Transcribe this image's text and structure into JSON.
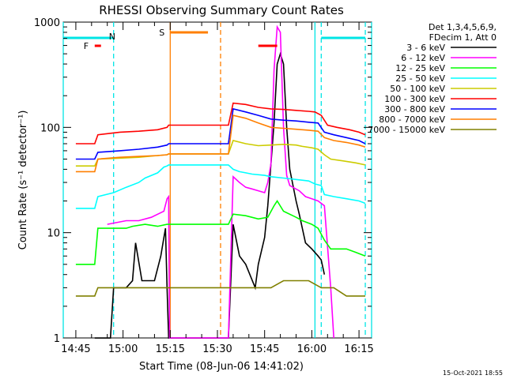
{
  "chart_data": {
    "type": "line",
    "title": "RHESSI Observing Summary Count Rates",
    "xlabel": "Start Time (08-Jun-06 14:41:02)",
    "ylabel": "Count Rate (s⁻¹ detector⁻¹)",
    "y_scale": "log",
    "ylim": [
      1,
      1000
    ],
    "xlim_minutes": [
      -4,
      94
    ],
    "grid": false,
    "legend_position": "right",
    "footer": "15-Oct-2021 18:55",
    "legend_header": [
      "Det 1,3,4,5,6,9,",
      "FDecim 1, Att 0"
    ],
    "x_tick_labels": [
      {
        "t": 0,
        "label": "14:45"
      },
      {
        "t": 15,
        "label": "15:00"
      },
      {
        "t": 30,
        "label": "15:15"
      },
      {
        "t": 45,
        "label": "15:30"
      },
      {
        "t": 60,
        "label": "15:45"
      },
      {
        "t": 75,
        "label": "16:00"
      },
      {
        "t": 90,
        "label": "16:15"
      }
    ],
    "y_tick_labels": [
      {
        "v": 1,
        "label": "1"
      },
      {
        "v": 10,
        "label": "10"
      },
      {
        "v": 100,
        "label": "100"
      },
      {
        "v": 1000,
        "label": "1000"
      }
    ],
    "series": [
      {
        "name": "3 - 6 keV",
        "color": "#000000",
        "points": [
          [
            6,
            0
          ],
          [
            11,
            0
          ],
          [
            12,
            3
          ],
          [
            16,
            3
          ],
          [
            18,
            3.5
          ],
          [
            19,
            8
          ],
          [
            21,
            3.5
          ],
          [
            25,
            3.5
          ],
          [
            27,
            6
          ],
          [
            28,
            9
          ],
          [
            28.5,
            11
          ],
          [
            29,
            3
          ],
          [
            29.5,
            0.5
          ],
          [
            48.5,
            0.5
          ],
          [
            50,
            12
          ],
          [
            52,
            6
          ],
          [
            54,
            5
          ],
          [
            57,
            3
          ],
          [
            58,
            5
          ],
          [
            60,
            9
          ],
          [
            61,
            18
          ],
          [
            63,
            110
          ],
          [
            64,
            400
          ],
          [
            65,
            500
          ],
          [
            66,
            400
          ],
          [
            67,
            100
          ],
          [
            68,
            40
          ],
          [
            70,
            20
          ],
          [
            71,
            15
          ],
          [
            73,
            8
          ],
          [
            75,
            7
          ],
          [
            77,
            6
          ],
          [
            78,
            5.5
          ],
          [
            79,
            4
          ]
        ]
      },
      {
        "name": "6 - 12 keV",
        "color": "#ff00ff",
        "points": [
          [
            10,
            12
          ],
          [
            16,
            13
          ],
          [
            20,
            13
          ],
          [
            24,
            14
          ],
          [
            28,
            16
          ],
          [
            29,
            21
          ],
          [
            29.5,
            22
          ],
          [
            29.8,
            1
          ],
          [
            48.5,
            1
          ],
          [
            50,
            34
          ],
          [
            52,
            30
          ],
          [
            54,
            27
          ],
          [
            56,
            26
          ],
          [
            58,
            25
          ],
          [
            60,
            24
          ],
          [
            61,
            30
          ],
          [
            62,
            45
          ],
          [
            63,
            350
          ],
          [
            64,
            900
          ],
          [
            65,
            800
          ],
          [
            66,
            100
          ],
          [
            67,
            35
          ],
          [
            68,
            28
          ],
          [
            71,
            25
          ],
          [
            73,
            22
          ],
          [
            75,
            21
          ],
          [
            77,
            20
          ],
          [
            79,
            18
          ],
          [
            81,
            3
          ],
          [
            82,
            0.5
          ]
        ]
      },
      {
        "name": "12 - 25 keV",
        "color": "#00ff00",
        "points": [
          [
            0,
            5
          ],
          [
            6,
            5
          ],
          [
            7,
            11
          ],
          [
            16,
            11
          ],
          [
            18,
            11.5
          ],
          [
            22,
            12
          ],
          [
            26,
            11.5
          ],
          [
            29,
            12
          ],
          [
            29.5,
            12
          ],
          [
            48.5,
            12
          ],
          [
            50,
            15
          ],
          [
            54,
            14.5
          ],
          [
            58,
            13.5
          ],
          [
            61,
            14
          ],
          [
            63,
            18
          ],
          [
            64,
            20
          ],
          [
            66,
            16
          ],
          [
            70,
            14
          ],
          [
            72,
            13
          ],
          [
            75,
            12
          ],
          [
            77,
            11
          ],
          [
            79,
            8.5
          ],
          [
            81,
            7
          ],
          [
            86,
            7
          ],
          [
            89,
            6.5
          ],
          [
            92,
            6
          ]
        ]
      },
      {
        "name": "25 - 50 keV",
        "color": "#00ffff",
        "points": [
          [
            0,
            17
          ],
          [
            6,
            17
          ],
          [
            7,
            22
          ],
          [
            12,
            24
          ],
          [
            16,
            27
          ],
          [
            20,
            30
          ],
          [
            22,
            33
          ],
          [
            26,
            37
          ],
          [
            28,
            42
          ],
          [
            29,
            43
          ],
          [
            29.5,
            44
          ],
          [
            48.5,
            44
          ],
          [
            50,
            40
          ],
          [
            52,
            38
          ],
          [
            54,
            37
          ],
          [
            56,
            36
          ],
          [
            60,
            35
          ],
          [
            62,
            34
          ],
          [
            66,
            33
          ],
          [
            70,
            32
          ],
          [
            74,
            31
          ],
          [
            76,
            29
          ],
          [
            78,
            28
          ],
          [
            79,
            23
          ],
          [
            82,
            22
          ],
          [
            86,
            21
          ],
          [
            90,
            20
          ],
          [
            92,
            19
          ]
        ]
      },
      {
        "name": "50 - 100 keV",
        "color": "#cccc00",
        "points": [
          [
            0,
            43
          ],
          [
            6,
            43
          ],
          [
            7,
            50
          ],
          [
            14,
            51
          ],
          [
            20,
            52
          ],
          [
            26,
            54
          ],
          [
            29,
            55
          ],
          [
            29.5,
            56
          ],
          [
            48.5,
            56
          ],
          [
            50,
            75
          ],
          [
            54,
            70
          ],
          [
            58,
            67
          ],
          [
            62,
            68
          ],
          [
            66,
            69
          ],
          [
            70,
            68
          ],
          [
            72,
            66
          ],
          [
            75,
            64
          ],
          [
            77,
            62
          ],
          [
            79,
            55
          ],
          [
            81,
            50
          ],
          [
            85,
            48
          ],
          [
            89,
            46
          ],
          [
            92,
            44
          ]
        ]
      },
      {
        "name": "100 - 300 keV",
        "color": "#ff0000",
        "points": [
          [
            0,
            70
          ],
          [
            6,
            70
          ],
          [
            7,
            85
          ],
          [
            14,
            90
          ],
          [
            20,
            92
          ],
          [
            26,
            95
          ],
          [
            29,
            100
          ],
          [
            29.5,
            105
          ],
          [
            48.5,
            105
          ],
          [
            50,
            170
          ],
          [
            54,
            165
          ],
          [
            58,
            155
          ],
          [
            62,
            150
          ],
          [
            66,
            148
          ],
          [
            70,
            145
          ],
          [
            74,
            142
          ],
          [
            76,
            140
          ],
          [
            78,
            130
          ],
          [
            80,
            105
          ],
          [
            83,
            100
          ],
          [
            87,
            95
          ],
          [
            90,
            90
          ],
          [
            92,
            85
          ]
        ]
      },
      {
        "name": "300 - 800 keV",
        "color": "#0000ff",
        "points": [
          [
            0,
            50
          ],
          [
            6,
            50
          ],
          [
            7,
            58
          ],
          [
            14,
            60
          ],
          [
            20,
            62
          ],
          [
            26,
            65
          ],
          [
            29,
            68
          ],
          [
            29.5,
            70
          ],
          [
            48.5,
            70
          ],
          [
            50,
            150
          ],
          [
            54,
            140
          ],
          [
            58,
            130
          ],
          [
            62,
            120
          ],
          [
            66,
            117
          ],
          [
            70,
            115
          ],
          [
            74,
            112
          ],
          [
            77,
            110
          ],
          [
            79,
            90
          ],
          [
            82,
            85
          ],
          [
            86,
            80
          ],
          [
            90,
            75
          ],
          [
            92,
            70
          ]
        ]
      },
      {
        "name": "800 - 7000 keV",
        "color": "#ff7f00",
        "points": [
          [
            0,
            38
          ],
          [
            6,
            38
          ],
          [
            7,
            50
          ],
          [
            14,
            52
          ],
          [
            20,
            53
          ],
          [
            26,
            54
          ],
          [
            29,
            55
          ],
          [
            29.5,
            56
          ],
          [
            48.5,
            56
          ],
          [
            50,
            130
          ],
          [
            54,
            122
          ],
          [
            58,
            110
          ],
          [
            62,
            100
          ],
          [
            66,
            98
          ],
          [
            70,
            96
          ],
          [
            74,
            94
          ],
          [
            77,
            92
          ],
          [
            79,
            80
          ],
          [
            82,
            75
          ],
          [
            86,
            72
          ],
          [
            90,
            68
          ],
          [
            92,
            65
          ]
        ]
      },
      {
        "name": "7000 - 15000 keV",
        "color": "#808000",
        "points": [
          [
            0,
            2.5
          ],
          [
            6,
            2.5
          ],
          [
            7,
            3
          ],
          [
            14,
            3
          ],
          [
            20,
            3
          ],
          [
            26,
            3
          ],
          [
            29,
            3
          ],
          [
            29.5,
            3
          ],
          [
            48.5,
            3
          ],
          [
            50,
            3
          ],
          [
            54,
            3
          ],
          [
            58,
            3
          ],
          [
            62,
            3
          ],
          [
            66,
            3.5
          ],
          [
            70,
            3.5
          ],
          [
            74,
            3.5
          ],
          [
            78,
            3
          ],
          [
            82,
            3
          ],
          [
            86,
            2.5
          ],
          [
            90,
            2.5
          ],
          [
            92,
            2.5
          ]
        ]
      }
    ],
    "bars": [
      {
        "label": "F",
        "color": "#ff0000",
        "t_start": 6,
        "t_end": 8,
        "y": 0.72
      },
      {
        "label": "",
        "color": "#ff0000",
        "t_start": 58,
        "t_end": 64,
        "y": 0.72
      },
      {
        "label": "S",
        "color": "#ff7f00",
        "t_start": 30,
        "t_end": 42,
        "y": 0.8
      }
    ],
    "markers": {
      "N": "N",
      "cyan_solid": [
        -4,
        76,
        94
      ],
      "cyan_dashed": [
        12,
        78,
        92
      ],
      "orange_solid": [
        30
      ],
      "orange_dashed": [
        46
      ]
    }
  }
}
